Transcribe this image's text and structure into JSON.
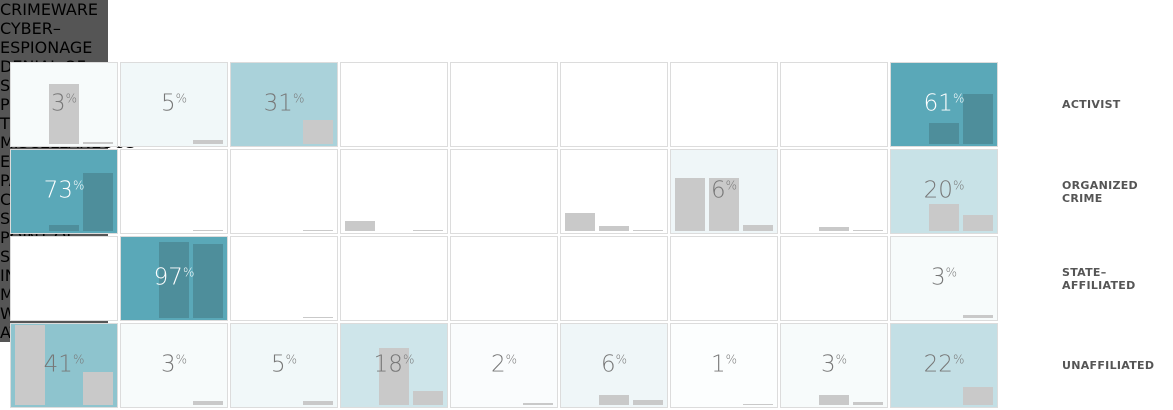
{
  "chart_data": {
    "type": "heatmap",
    "columns": [
      [
        "CRIMEWARE"
      ],
      [
        "CYBER–",
        "ESPIONAGE"
      ],
      [
        "DENIAL OF",
        "SERVICE"
      ],
      [
        "PHYSICAL",
        "THEFT / LOSS"
      ],
      [
        "MISCELLANEOUS",
        "ERRORS"
      ],
      [
        "PAYMENT",
        "CARD SKIMMERS"
      ],
      [
        "POINT OF",
        "SALE"
      ],
      [
        "INSIDER",
        "MISUSE"
      ],
      [
        "WEB APP",
        "ATTACKS"
      ]
    ],
    "rows": [
      [
        "ACTIVIST"
      ],
      [
        "ORGANIZED",
        "CRIME"
      ],
      [
        "STATE–",
        "AFFILIATED"
      ],
      [
        "UNAFFILIATED"
      ]
    ],
    "unit": "%",
    "values": [
      [
        3,
        5,
        31,
        null,
        null,
        null,
        null,
        null,
        61
      ],
      [
        73,
        null,
        null,
        null,
        null,
        null,
        6,
        null,
        20
      ],
      [
        null,
        97,
        null,
        null,
        null,
        null,
        null,
        null,
        3
      ],
      [
        41,
        3,
        5,
        18,
        2,
        6,
        1,
        3,
        22
      ]
    ],
    "bars": [
      [
        [
          null,
          75,
          3
        ],
        [
          null,
          null,
          5
        ],
        [
          null,
          null,
          30
        ],
        [
          null,
          null,
          null
        ],
        [
          null,
          null,
          null
        ],
        [
          null,
          null,
          null
        ],
        [
          null,
          null,
          null
        ],
        [
          null,
          null,
          null
        ],
        [
          null,
          26,
          62
        ]
      ],
      [
        [
          null,
          8,
          72
        ],
        [
          null,
          null,
          1
        ],
        [
          null,
          null,
          1
        ],
        [
          12,
          null,
          1
        ],
        [
          null,
          null,
          null
        ],
        [
          23,
          6,
          1
        ],
        [
          66,
          66,
          7
        ],
        [
          null,
          5,
          1
        ],
        [
          null,
          34,
          20
        ]
      ],
      [
        [
          null,
          null,
          null
        ],
        [
          null,
          95,
          93
        ],
        [
          null,
          null,
          1
        ],
        [
          null,
          null,
          null
        ],
        [
          null,
          null,
          null
        ],
        [
          null,
          null,
          null
        ],
        [
          null,
          null,
          null
        ],
        [
          null,
          null,
          null
        ],
        [
          null,
          null,
          4
        ]
      ],
      [
        [
          100,
          null,
          41
        ],
        [
          null,
          null,
          5
        ],
        [
          null,
          null,
          5
        ],
        [
          null,
          71,
          18
        ],
        [
          null,
          null,
          2
        ],
        [
          null,
          12,
          6
        ],
        [
          null,
          null,
          1
        ],
        [
          null,
          12,
          4
        ],
        [
          null,
          null,
          23
        ]
      ]
    ],
    "bar_ylim": [
      0,
      100
    ],
    "color_low": "#ffffff",
    "color_high": "#5aa8b8",
    "bar_color": "#c9c9c9",
    "bar_color_dark": "#4e8e9b",
    "header_color": "#555555"
  }
}
